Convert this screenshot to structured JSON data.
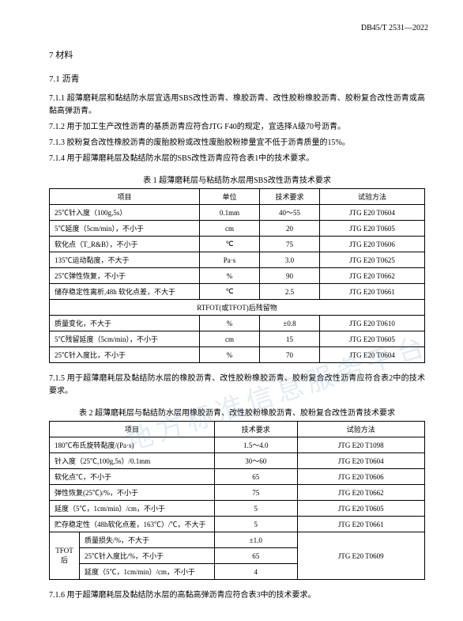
{
  "docNumber": "DB45/T 2531—2022",
  "h1": "7  材料",
  "h2_1": "7.1  沥青",
  "paras_a": [
    "7.1.1  超薄磨耗层和黏结防水层宜选用SBS改性沥青、橡胶沥青、改性胶粉橡胶沥青、胶粉复合改性沥青或高黏高弹沥青。",
    "7.1.2  用于加工生产改性沥青的基质沥青应符合JTG F40的规定，宜选择A级70号沥青。",
    "7.1.3  胶粉复合改性橡胶沥青的废胎胶粉或改性废胎胶粉掺量宜不低于沥青质量的15%。",
    "7.1.4  用于超薄磨耗层及黏结防水层的SBS改性沥青应符合表1中的技术要求。"
  ],
  "table1": {
    "title": "表 1  超薄磨耗层与粘结防水层用SBS改性沥青技术要求",
    "headers": [
      "项目",
      "单位",
      "技术要求",
      "试验方法"
    ],
    "rows1": [
      [
        "25℃针入度（100g,5s）",
        "0.1mm",
        "40～55",
        "JTG E20 T0604"
      ],
      [
        "5℃延度（5cm/min），不小于",
        "cm",
        "20",
        "JTG E20 T0605"
      ],
      [
        "软化点（T_R&B），不小于",
        "℃",
        "75",
        "JTG E20 T0606"
      ],
      [
        "135℃运动黏度，不大于",
        "Pa·s",
        "3.0",
        "JTG E20 T0625"
      ],
      [
        "25℃弹性恢复，不小于",
        "%",
        "90",
        "JTG E20 T0662"
      ],
      [
        "储存稳定性离析,48h 软化点差，不大于",
        "℃",
        "2.5",
        "JTG E20 T0661"
      ]
    ],
    "midHeader": "RTFOT(或TFOT)后残留物",
    "rows2": [
      [
        "质量变化，不大于",
        "%",
        "±0.8",
        "JTG E20 T0610"
      ],
      [
        "5℃残留延度（5cm/min），不小于",
        "cm",
        "15",
        "JTG E20 T0605"
      ],
      [
        "25℃针入度比，不小于",
        "%",
        "70",
        "JTG E20 T0604"
      ]
    ]
  },
  "para_b": "7.1.5  用于超薄磨耗层及黏结防水层的橡胶沥青、改性胶粉橡胶沥青、胶粉复合改性沥青应符合表2中的技术要求。",
  "table2": {
    "title": "表 2  超薄磨耗层与黏结防水层用橡胶沥青、改性胶粉橡胶沥青、胶粉复合改性沥青技术要求",
    "headers": [
      "项目",
      "技术要求",
      "试验方法"
    ],
    "rows1": [
      [
        "180℃布氏旋转黏度/(Pa·s)",
        "1.5～4.0",
        "JTG E20 T1098"
      ],
      [
        "针入度（25℃,100g,5s）/0.1mm",
        "30～60",
        "JTG E20 T0604"
      ],
      [
        "软化点℃，不小于",
        "65",
        "JTG E20 T0606"
      ],
      [
        "弹性恢复(25℃)/%，不小于",
        "75",
        "JTG E20 T0662"
      ],
      [
        "延度（5℃，1cm/min）/cm，不小于",
        "5",
        "JTG E20 T0605"
      ],
      [
        "贮存稳定性（48h软化点差，163℃）/℃，不大于",
        "5",
        "JTG E20 T0661"
      ]
    ],
    "group": {
      "label": "TFOT后",
      "rows": [
        [
          "质量损失/%，不大于",
          "±1.0"
        ],
        [
          "25℃针入度比/%，不小于",
          "65"
        ],
        [
          "延度（5℃，1cm/min）/cm，不小于",
          "4"
        ]
      ],
      "method": "JTG E20 T0609"
    }
  },
  "para_c": "7.1.6  用于超薄磨耗层及黏结防水层的高黏高弹沥青应符合表3中的技术要求。",
  "watermark": "地方标准信息服务平台"
}
